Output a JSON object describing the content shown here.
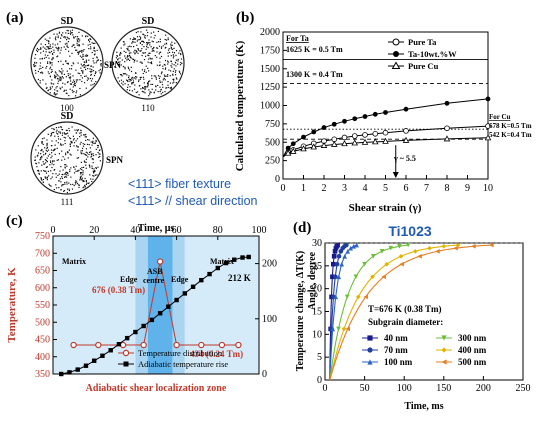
{
  "colors": {
    "red": "#c0392b",
    "blue_title": "#1f5bb5",
    "zone_light": "#d6ebfa",
    "zone_mid": "#a9d4f2",
    "zone_dark": "#5fb3ea"
  },
  "panel_a": {
    "label": "(a)",
    "poles": [
      {
        "top": "SD",
        "right": "",
        "bottom": "100"
      },
      {
        "top": "SD",
        "right": "",
        "bottom": "110"
      },
      {
        "top": "SD",
        "right": "SPN",
        "bottom": "111"
      }
    ],
    "spn_label": "SPN",
    "notes": [
      "<111> fiber texture",
      "<111> // shear direction"
    ]
  },
  "chart_data": [
    {
      "type": "line",
      "label": "(b)",
      "xlabel": "Shear strain (γ)",
      "ylabel": "Calculated temperature (K)",
      "xlim": [
        0,
        10
      ],
      "ylim": [
        0,
        2000
      ],
      "xticks": [
        0,
        1,
        2,
        3,
        4,
        5,
        6,
        7,
        8,
        9,
        10
      ],
      "yticks": [
        0,
        250,
        500,
        750,
        1000,
        1250,
        1500,
        1750,
        2000
      ],
      "ta_header": "For Ta",
      "cu_header": "For Cu",
      "ref_lines": [
        {
          "y": 1625,
          "label": "1625 K = 0.5 Tm",
          "style": "solid"
        },
        {
          "y": 1300,
          "label": "1300 K = 0.4 Tm",
          "style": "dashed"
        },
        {
          "y": 678,
          "label": "678 K=0.5 Tm",
          "style": "dotted"
        },
        {
          "y": 542,
          "label": "542 K=0.4 Tm",
          "style": "dashed"
        }
      ],
      "arrow_x": 5.5,
      "arrow_label": "γ ~ 5.5",
      "series": [
        {
          "name": "Pure Ta",
          "marker": "open-circle",
          "x": [
            0,
            0.25,
            0.5,
            1,
            1.5,
            2,
            2.5,
            3,
            3.5,
            4,
            4.5,
            5,
            6,
            8,
            10
          ],
          "y": [
            300,
            360,
            395,
            445,
            485,
            515,
            540,
            565,
            585,
            600,
            615,
            630,
            655,
            690,
            720
          ]
        },
        {
          "name": "Ta-10wt.%W",
          "marker": "filled-circle",
          "x": [
            0,
            0.25,
            0.5,
            1,
            1.5,
            2,
            2.5,
            3,
            3.5,
            4,
            4.5,
            5,
            6,
            8,
            10
          ],
          "y": [
            300,
            420,
            480,
            570,
            640,
            700,
            745,
            785,
            820,
            850,
            880,
            905,
            950,
            1030,
            1090
          ]
        },
        {
          "name": "Pure Cu",
          "marker": "open-triangle",
          "x": [
            0,
            0.25,
            0.5,
            1,
            1.5,
            2,
            2.5,
            3,
            3.5,
            4,
            4.5,
            5,
            6,
            8,
            10
          ],
          "y": [
            300,
            350,
            375,
            410,
            435,
            455,
            470,
            480,
            490,
            498,
            505,
            512,
            525,
            545,
            560
          ]
        }
      ]
    },
    {
      "type": "line",
      "label": "(c)",
      "xlabel_top": "Time, μs",
      "xlabel_bottom": "Adiabatic shear localization zone",
      "ylabel": "Temperature, K",
      "xlim": [
        0,
        100
      ],
      "ylim_left": [
        350,
        750
      ],
      "ylim_right": [
        0,
        250
      ],
      "xticks": [
        0,
        20,
        40,
        60,
        80,
        100
      ],
      "yticks_left": [
        350,
        400,
        450,
        500,
        550,
        600,
        650,
        700,
        750
      ],
      "yticks_right": [
        0,
        100,
        200
      ],
      "zones": [
        {
          "name": "Matrix",
          "from": 0,
          "to": 40
        },
        {
          "name": "Edge",
          "from": 40,
          "to": 46
        },
        {
          "name": "ASB centre",
          "from": 46,
          "to": 58
        },
        {
          "name": "Edge",
          "from": 58,
          "to": 64
        },
        {
          "name": "Matrix",
          "from": 64,
          "to": 100
        }
      ],
      "annotations": {
        "peak": "676 (0.38 Tm)",
        "low": "434 (0.24 Tm)",
        "rise": "212 K"
      },
      "series": [
        {
          "name": "Temperature distribution",
          "marker": "circle-red",
          "axis": "left",
          "x": [
            10,
            22,
            34,
            44,
            52,
            60,
            72,
            82,
            90
          ],
          "y": [
            434,
            434,
            434,
            434,
            676,
            434,
            434,
            434,
            434
          ]
        },
        {
          "name": "Adiabatic temperature rise",
          "marker": "square-black",
          "axis": "right",
          "x": [
            4,
            8,
            12,
            16,
            20,
            24,
            28,
            32,
            36,
            40,
            44,
            48,
            52,
            56,
            60,
            64,
            68,
            72,
            76,
            80,
            84,
            88,
            92,
            95
          ],
          "y": [
            0,
            3,
            8,
            15,
            24,
            33,
            43,
            54,
            65,
            76,
            87,
            98,
            110,
            122,
            134,
            146,
            158,
            170,
            181,
            192,
            201,
            207,
            211,
            212
          ]
        }
      ]
    },
    {
      "type": "line",
      "label": "(d)",
      "title": "Ti1023",
      "xlabel": "Time, ms",
      "ylabel": "Temperature change, ΔT(K)",
      "ylabel2": "Angle, degree",
      "xlim": [
        0,
        250
      ],
      "ylim": [
        0,
        30
      ],
      "xticks": [
        0,
        50,
        100,
        150,
        200,
        250
      ],
      "yticks": [
        0,
        5,
        10,
        15,
        20,
        25,
        30
      ],
      "note": "T=676 K (0.38 Tm)",
      "legend_title": "Subgrain diameter:",
      "series": [
        {
          "name": "40 nm",
          "color": "#1a1a8c",
          "marker": "square",
          "tend": 16
        },
        {
          "name": "70 nm",
          "color": "#1e3fa0",
          "marker": "circle",
          "tend": 27
        },
        {
          "name": "100 nm",
          "color": "#2a63c9",
          "marker": "triangle-up",
          "tend": 40
        },
        {
          "name": "300 nm",
          "color": "#6dbf3b",
          "marker": "triangle-down",
          "tend": 105
        },
        {
          "name": "400 nm",
          "color": "#e0b400",
          "marker": "diamond",
          "tend": 168
        },
        {
          "name": "500 nm",
          "color": "#e67e22",
          "marker": "triangle-left",
          "tend": 210
        }
      ]
    }
  ]
}
